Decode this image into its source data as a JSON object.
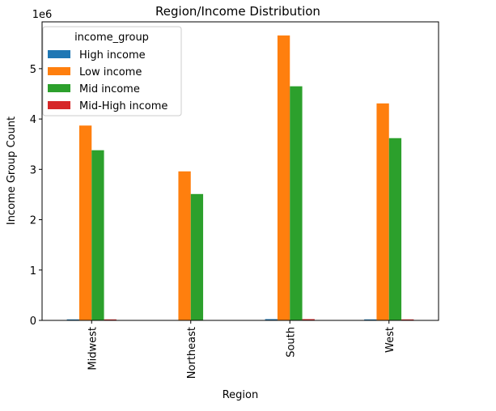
{
  "chart_data": {
    "type": "bar",
    "title": "Region/Income Distribution",
    "x_label": "Region",
    "y_label": "Income Group Count",
    "y_offset_label": "1e6",
    "legend_title": "income_group",
    "legend": "upper left",
    "categories": [
      "Midwest",
      "Northeast",
      "South",
      "West"
    ],
    "series": [
      {
        "name": "High income",
        "color": "#1f77b4",
        "values": [
          20000,
          5000,
          25000,
          20000
        ]
      },
      {
        "name": "Low income",
        "color": "#ff7f0e",
        "values": [
          3870000,
          2960000,
          5660000,
          4310000
        ]
      },
      {
        "name": "Mid income",
        "color": "#2ca02c",
        "values": [
          3380000,
          2510000,
          4650000,
          3620000
        ]
      },
      {
        "name": "Mid-High income",
        "color": "#d62728",
        "values": [
          20000,
          5000,
          25000,
          20000
        ]
      }
    ],
    "ylim": [
      0,
      5930000
    ],
    "yticks": [
      {
        "value": 0,
        "label": "0"
      },
      {
        "value": 1000000,
        "label": "1"
      },
      {
        "value": 2000000,
        "label": "2"
      },
      {
        "value": 3000000,
        "label": "3"
      },
      {
        "value": 4000000,
        "label": "4"
      },
      {
        "value": 5000000,
        "label": "5"
      }
    ]
  }
}
